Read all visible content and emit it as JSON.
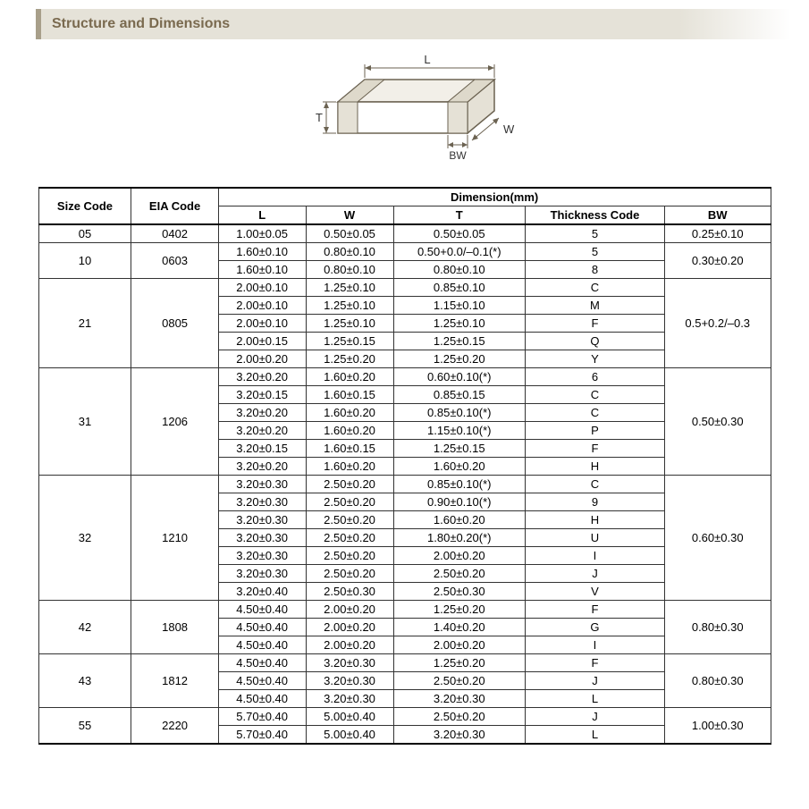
{
  "header": {
    "title": "Structure and Dimensions"
  },
  "diagram": {
    "labels": {
      "L": "L",
      "W": "W",
      "T": "T",
      "BW": "BW"
    },
    "fill_top": "#f2efe8",
    "fill_side": "#e5e1d6",
    "fill_front": "#ffffff",
    "stroke": "#6b6251"
  },
  "table": {
    "headers": {
      "size_code": "Size Code",
      "eia_code": "EIA Code",
      "dimension": "Dimension",
      "unit": "(mm)",
      "L": "L",
      "W": "W",
      "T": "T",
      "thickness_code": "Thickness Code",
      "BW": "BW"
    },
    "groups": [
      {
        "size_code": "05",
        "eia_code": "0402",
        "bw": "0.25±0.10",
        "rows": [
          {
            "L": "1.00±0.05",
            "W": "0.50±0.05",
            "T": "0.50±0.05",
            "tc": "5"
          }
        ]
      },
      {
        "size_code": "10",
        "eia_code": "0603",
        "bw": "0.30±0.20",
        "rows": [
          {
            "L": "1.60±0.10",
            "W": "0.80±0.10",
            "T": "0.50+0.0/–0.1(*)",
            "tc": "5"
          },
          {
            "L": "1.60±0.10",
            "W": "0.80±0.10",
            "T": "0.80±0.10",
            "tc": "8"
          }
        ]
      },
      {
        "size_code": "21",
        "eia_code": "0805",
        "bw": "0.5+0.2/–0.3",
        "rows": [
          {
            "L": "2.00±0.10",
            "W": "1.25±0.10",
            "T": "0.85±0.10",
            "tc": "C"
          },
          {
            "L": "2.00±0.10",
            "W": "1.25±0.10",
            "T": "1.15±0.10",
            "tc": "M"
          },
          {
            "L": "2.00±0.10",
            "W": "1.25±0.10",
            "T": "1.25±0.10",
            "tc": "F"
          },
          {
            "L": "2.00±0.15",
            "W": "1.25±0.15",
            "T": "1.25±0.15",
            "tc": "Q"
          },
          {
            "L": "2.00±0.20",
            "W": "1.25±0.20",
            "T": "1.25±0.20",
            "tc": "Y"
          }
        ]
      },
      {
        "size_code": "31",
        "eia_code": "1206",
        "bw": "0.50±0.30",
        "rows": [
          {
            "L": "3.20±0.20",
            "W": "1.60±0.20",
            "T": "0.60±0.10(*)",
            "tc": "6"
          },
          {
            "L": "3.20±0.15",
            "W": "1.60±0.15",
            "T": "0.85±0.15",
            "tc": "C"
          },
          {
            "L": "3.20±0.20",
            "W": "1.60±0.20",
            "T": "0.85±0.10(*)",
            "tc": "C"
          },
          {
            "L": "3.20±0.20",
            "W": "1.60±0.20",
            "T": "1.15±0.10(*)",
            "tc": "P"
          },
          {
            "L": "3.20±0.15",
            "W": "1.60±0.15",
            "T": "1.25±0.15",
            "tc": "F"
          },
          {
            "L": "3.20±0.20",
            "W": "1.60±0.20",
            "T": "1.60±0.20",
            "tc": "H"
          }
        ]
      },
      {
        "size_code": "32",
        "eia_code": "1210",
        "bw": "0.60±0.30",
        "rows": [
          {
            "L": "3.20±0.30",
            "W": "2.50±0.20",
            "T": "0.85±0.10(*)",
            "tc": "C"
          },
          {
            "L": "3.20±0.30",
            "W": "2.50±0.20",
            "T": "0.90±0.10(*)",
            "tc": "9"
          },
          {
            "L": "3.20±0.30",
            "W": "2.50±0.20",
            "T": "1.60±0.20",
            "tc": "H"
          },
          {
            "L": "3.20±0.30",
            "W": "2.50±0.20",
            "T": "1.80±0.20(*)",
            "tc": "U"
          },
          {
            "L": "3.20±0.30",
            "W": "2.50±0.20",
            "T": "2.00±0.20",
            "tc": "I"
          },
          {
            "L": "3.20±0.30",
            "W": "2.50±0.20",
            "T": "2.50±0.20",
            "tc": "J"
          },
          {
            "L": "3.20±0.40",
            "W": "2.50±0.30",
            "T": "2.50±0.30",
            "tc": "V"
          }
        ]
      },
      {
        "size_code": "42",
        "eia_code": "1808",
        "bw": "0.80±0.30",
        "rows": [
          {
            "L": "4.50±0.40",
            "W": "2.00±0.20",
            "T": "1.25±0.20",
            "tc": "F"
          },
          {
            "L": "4.50±0.40",
            "W": "2.00±0.20",
            "T": "1.40±0.20",
            "tc": "G"
          },
          {
            "L": "4.50±0.40",
            "W": "2.00±0.20",
            "T": "2.00±0.20",
            "tc": "I"
          }
        ]
      },
      {
        "size_code": "43",
        "eia_code": "1812",
        "bw": "0.80±0.30",
        "rows": [
          {
            "L": "4.50±0.40",
            "W": "3.20±0.30",
            "T": "1.25±0.20",
            "tc": "F"
          },
          {
            "L": "4.50±0.40",
            "W": "3.20±0.30",
            "T": "2.50±0.20",
            "tc": "J"
          },
          {
            "L": "4.50±0.40",
            "W": "3.20±0.30",
            "T": "3.20±0.30",
            "tc": "L"
          }
        ]
      },
      {
        "size_code": "55",
        "eia_code": "2220",
        "bw": "1.00±0.30",
        "rows": [
          {
            "L": "5.70±0.40",
            "W": "5.00±0.40",
            "T": "2.50±0.20",
            "tc": "J"
          },
          {
            "L": "5.70±0.40",
            "W": "5.00±0.40",
            "T": "3.20±0.30",
            "tc": "L"
          }
        ]
      }
    ]
  }
}
